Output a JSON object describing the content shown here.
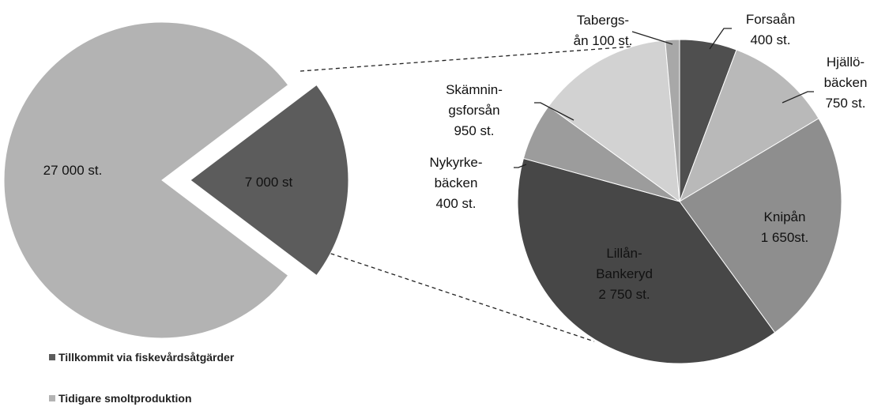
{
  "chart_data": [
    {
      "type": "pie",
      "categories": [
        "Tillkommit via fiskevårdsåtgärder",
        "Tidigare smoltproduktion"
      ],
      "values": [
        7000,
        27000
      ],
      "value_labels": [
        "7 000 st",
        "27 000 st."
      ],
      "colors": [
        "#5c5c5c",
        "#b3b3b3"
      ]
    },
    {
      "type": "pie",
      "values": [
        400,
        750,
        1650,
        2750,
        400,
        950,
        100
      ],
      "value_labels": [
        "Forsaån\n400 st.",
        "Hjällö-\nbäcken\n750 st.",
        "Knipån\n1 650st.",
        "Lillån-\nBankeryd\n2 750 st.",
        "Nykyrke-\nbäcken\n400 st.",
        "Skämnin-\ngsforsån\n950 st.",
        "Tabergs-\nån 100 st."
      ],
      "colors": [
        "#4f4f4f",
        "#b9b9b9",
        "#8e8e8e",
        "#474747",
        "#9c9c9c",
        "#d2d2d2",
        "#a8a8a8"
      ]
    }
  ]
}
